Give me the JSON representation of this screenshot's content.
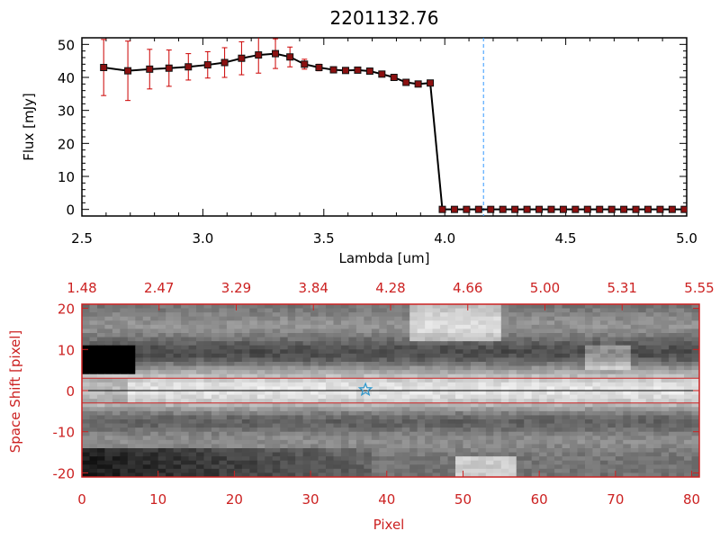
{
  "chart_data": [
    {
      "type": "line",
      "title": "2201132.76",
      "xlabel": "Lambda [um]",
      "ylabel": "Flux [mJy]",
      "xlim": [
        2.5,
        5.0
      ],
      "ylim": [
        -2,
        52
      ],
      "x_ticks": [
        "2.5",
        "3.0",
        "3.5",
        "4.0",
        "4.5",
        "5.0"
      ],
      "y_ticks": [
        "0",
        "10",
        "20",
        "30",
        "40",
        "50"
      ],
      "vline_x": 4.16,
      "colors": {
        "line": "#000000",
        "marker": "#8b1010",
        "errorbar": "#cc0000",
        "vline": "#3399ff",
        "baseline": "#cc0000"
      },
      "series": [
        {
          "x": [
            2.59,
            2.69,
            2.78,
            2.86,
            2.94,
            3.02,
            3.09,
            3.16,
            3.23,
            3.3,
            3.36,
            3.42,
            3.48,
            3.54,
            3.59,
            3.64,
            3.69,
            3.74,
            3.79,
            3.84,
            3.89,
            3.94,
            3.99,
            4.04,
            4.09,
            4.14,
            4.19,
            4.24,
            4.29,
            4.34,
            4.39,
            4.44,
            4.49,
            4.54,
            4.59,
            4.64,
            4.69,
            4.74,
            4.79,
            4.84,
            4.89,
            4.94,
            4.99
          ],
          "y": [
            43.0,
            42.0,
            42.5,
            42.8,
            43.2,
            43.8,
            44.5,
            45.8,
            46.8,
            47.2,
            46.2,
            44.0,
            43.0,
            42.3,
            42.1,
            42.2,
            41.9,
            41.0,
            40.0,
            38.5,
            38.0,
            38.3,
            0,
            0,
            0,
            0,
            0,
            0,
            0,
            0,
            0,
            0,
            0,
            0,
            0,
            0,
            0,
            0,
            0,
            0,
            0,
            0,
            0
          ],
          "yerr": [
            8.5,
            9.0,
            6.0,
            5.5,
            4.0,
            4.0,
            4.5,
            5.0,
            5.5,
            4.5,
            3.0,
            1.5,
            1.0,
            0.8,
            0.8,
            0.8,
            0.8,
            0.8,
            0.8,
            0.8,
            0.8,
            0.8,
            0,
            0,
            0,
            0,
            0,
            0,
            0,
            0,
            0,
            0,
            0,
            0,
            0,
            0,
            0,
            0,
            0,
            0,
            0,
            0,
            0
          ]
        }
      ]
    },
    {
      "type": "heatmap",
      "xlabel": "Pixel",
      "ylabel": "Space Shift [pixel]",
      "xlim": [
        0,
        81
      ],
      "ylim": [
        -21,
        21
      ],
      "x_ticks": [
        "0",
        "10",
        "20",
        "30",
        "40",
        "50",
        "60",
        "70",
        "80"
      ],
      "y_ticks": [
        "-20",
        "-10",
        "0",
        "10",
        "20"
      ],
      "top_ticks": [
        "1.48",
        "2.47",
        "3.29",
        "3.84",
        "4.28",
        "4.66",
        "5.00",
        "5.31",
        "5.55"
      ],
      "aperture_lines": [
        3,
        -3
      ],
      "center_line": 0,
      "star_marker": {
        "x": 37.2,
        "y": 0.2
      },
      "colors": {
        "frame": "#cc2222",
        "aperture": "#cc2222",
        "star": "#3399cc"
      }
    }
  ]
}
